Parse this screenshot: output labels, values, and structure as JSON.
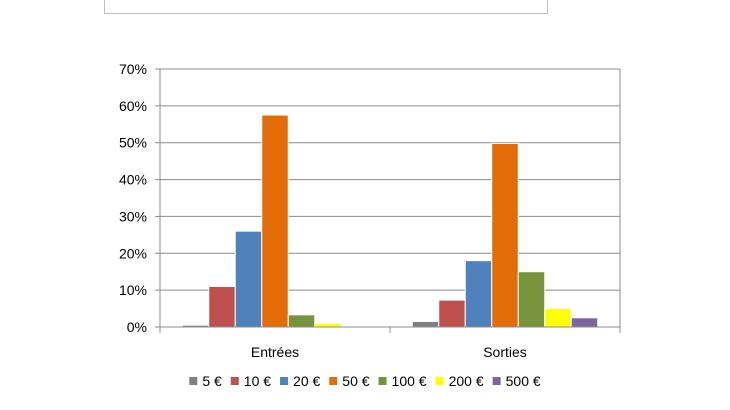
{
  "chart_data": {
    "type": "bar",
    "title": "",
    "xlabel": "",
    "ylabel": "",
    "categories": [
      "Entrées",
      "Sorties"
    ],
    "ylim": [
      0,
      70
    ],
    "yticks": [
      0,
      10,
      20,
      30,
      40,
      50,
      60,
      70
    ],
    "ytick_labels": [
      "0%",
      "10%",
      "20%",
      "30%",
      "40%",
      "50%",
      "60%",
      "70%"
    ],
    "grid": true,
    "legend_position": "bottom",
    "series": [
      {
        "name": "5 €",
        "color": "#808080",
        "values": [
          0.5,
          1.5
        ]
      },
      {
        "name": "10 €",
        "color": "#c0504d",
        "values": [
          11,
          7.3
        ]
      },
      {
        "name": "20 €",
        "color": "#4f81bd",
        "values": [
          26,
          18
        ]
      },
      {
        "name": "50 €",
        "color": "#e36c09",
        "values": [
          57.5,
          49.8
        ]
      },
      {
        "name": "100 €",
        "color": "#77933c",
        "values": [
          3.3,
          15
        ]
      },
      {
        "name": "200 €",
        "color": "#ffff00",
        "values": [
          1,
          5
        ]
      },
      {
        "name": "500 €",
        "color": "#8064a2",
        "values": [
          0,
          2.5
        ]
      }
    ]
  }
}
